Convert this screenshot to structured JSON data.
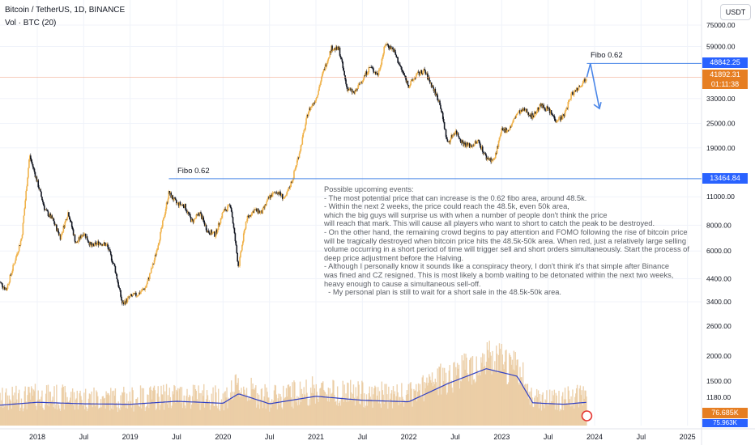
{
  "header": {
    "symbol": "Bitcoin / TetherUS, 1D, BINANCE",
    "volume_indicator": "Vol · BTC (20)",
    "currency": "USDT"
  },
  "price_tag": {
    "price": "41892.31",
    "countdown": "01:11:38"
  },
  "fibo_upper_tag": "48842.25",
  "fibo_lower_tag": "13464.84",
  "volume_tag": "76.685K",
  "volume_ma_tag": "75.963K",
  "fibo_upper_label": "Fibo 0.62",
  "fibo_lower_label": "Fibo 0.62",
  "notes": "Possible upcoming events:\n- The most potential price that can increase is the 0.62 fibo area, around 48.5k.\n- Within the next 2 weeks, the price could reach the 48.5k, even 50k area,\nwhich the big guys will surprise us with when a number of people don't think the price\nwill reach that mark. This will cause all players who want to short to catch the peak to be destroyed.\n- On the other hand, the remaining crowd begins to pay attention and FOMO following the rise of bitcoin price\nwill be tragically destroyed when bitcoin price hits the 48.5k-50k area. When red, just a relatively large selling\nvolume occurring in a short period of time will trigger sell and short orders simultaneously. Start the process of\ndeep price adjustment before the Halving.\n- Although I personally know it sounds like a conspiracy theory, I don't think it's that simple after Binance\nwas fined and CZ resigned. This is most likely a bomb waiting to be detonated within the next two weeks,\nheavy enough to cause a simultaneous sell-off.\n  - My personal plan is still to wait for a short sale in the 48.5k-50k area.",
  "colors": {
    "up_candle": "#f0b24a",
    "down_candle": "#131722",
    "volume_bar": "#e8c79a",
    "volume_ma": "#2f3fc4",
    "fibo_line": "#4a86e8",
    "price_line": "#f0a080",
    "arrow": "#4a86e8",
    "grid": "#f0f3fa"
  },
  "chart_data": {
    "type": "candlestick",
    "title": "Bitcoin / TetherUS, 1D, BINANCE",
    "y_scale": "log",
    "y_ticks": [
      3400,
      4400,
      6000,
      8000,
      11000,
      13464.84,
      19000,
      25000,
      33000,
      41892.31,
      48842.25,
      59000,
      75000
    ],
    "y_tick_labels": [
      "3400.00",
      "4400.00",
      "6000.00",
      "8000.00",
      "11000.00",
      "19000.00",
      "25000.00",
      "33000.00",
      "59000.00",
      "75000.00"
    ],
    "volume_ticks": [
      "1180.00",
      "1500.00",
      "2000.00",
      "2600.00"
    ],
    "x_tick_labels": [
      "2018",
      "Jul",
      "2019",
      "Jul",
      "2020",
      "Jul",
      "2021",
      "Jul",
      "2022",
      "Jul",
      "2023",
      "Jul",
      "2024",
      "Jul",
      "2025"
    ],
    "x_tick_dates": [
      "2018-01",
      "2018-07",
      "2019-01",
      "2019-07",
      "2020-01",
      "2020-07",
      "2021-01",
      "2021-07",
      "2022-01",
      "2022-07",
      "2023-01",
      "2023-07",
      "2024-01",
      "2024-07",
      "2025-01"
    ],
    "price_path": [
      [
        "2017-08",
        4300
      ],
      [
        "2017-09",
        3900
      ],
      [
        "2017-10",
        5200
      ],
      [
        "2017-11",
        7000
      ],
      [
        "2017-12",
        17500
      ],
      [
        "2018-01",
        13000
      ],
      [
        "2018-02",
        9500
      ],
      [
        "2018-03",
        8500
      ],
      [
        "2018-04",
        7000
      ],
      [
        "2018-05",
        9300
      ],
      [
        "2018-06",
        6500
      ],
      [
        "2018-07",
        7400
      ],
      [
        "2018-08",
        6300
      ],
      [
        "2018-09",
        6600
      ],
      [
        "2018-10",
        6400
      ],
      [
        "2018-11",
        5000
      ],
      [
        "2018-12",
        3300
      ],
      [
        "2019-01",
        3600
      ],
      [
        "2019-02",
        3700
      ],
      [
        "2019-03",
        4000
      ],
      [
        "2019-04",
        5200
      ],
      [
        "2019-05",
        7500
      ],
      [
        "2019-06",
        11500
      ],
      [
        "2019-07",
        10200
      ],
      [
        "2019-08",
        10000
      ],
      [
        "2019-09",
        8300
      ],
      [
        "2019-10",
        9200
      ],
      [
        "2019-11",
        7500
      ],
      [
        "2019-12",
        7200
      ],
      [
        "2020-01",
        9300
      ],
      [
        "2020-02",
        10000
      ],
      [
        "2020-03",
        5000
      ],
      [
        "2020-04",
        8500
      ],
      [
        "2020-05",
        9500
      ],
      [
        "2020-06",
        9200
      ],
      [
        "2020-07",
        11000
      ],
      [
        "2020-08",
        11700
      ],
      [
        "2020-09",
        10700
      ],
      [
        "2020-10",
        13500
      ],
      [
        "2020-11",
        19000
      ],
      [
        "2020-12",
        28500
      ],
      [
        "2021-01",
        33000
      ],
      [
        "2021-02",
        45000
      ],
      [
        "2021-03",
        58000
      ],
      [
        "2021-04",
        57000
      ],
      [
        "2021-05",
        37000
      ],
      [
        "2021-06",
        35000
      ],
      [
        "2021-07",
        41000
      ],
      [
        "2021-08",
        47000
      ],
      [
        "2021-09",
        43000
      ],
      [
        "2021-10",
        61000
      ],
      [
        "2021-11",
        57000
      ],
      [
        "2021-12",
        46000
      ],
      [
        "2022-01",
        38000
      ],
      [
        "2022-02",
        43000
      ],
      [
        "2022-03",
        45000
      ],
      [
        "2022-04",
        38000
      ],
      [
        "2022-05",
        31500
      ],
      [
        "2022-06",
        20000
      ],
      [
        "2022-07",
        23000
      ],
      [
        "2022-08",
        20000
      ],
      [
        "2022-09",
        19400
      ],
      [
        "2022-10",
        20500
      ],
      [
        "2022-11",
        17000
      ],
      [
        "2022-12",
        16500
      ],
      [
        "2023-01",
        23000
      ],
      [
        "2023-02",
        23500
      ],
      [
        "2023-03",
        28000
      ],
      [
        "2023-04",
        29000
      ],
      [
        "2023-05",
        27000
      ],
      [
        "2023-06",
        30500
      ],
      [
        "2023-07",
        29200
      ],
      [
        "2023-08",
        26000
      ],
      [
        "2023-09",
        27000
      ],
      [
        "2023-10",
        34500
      ],
      [
        "2023-11",
        37700
      ],
      [
        "2023-12",
        41892.31
      ]
    ],
    "volume_path": [
      [
        "2017-08",
        1020
      ],
      [
        "2018-01",
        1080
      ],
      [
        "2018-07",
        1050
      ],
      [
        "2019-01",
        1040
      ],
      [
        "2019-07",
        1100
      ],
      [
        "2020-01",
        1060
      ],
      [
        "2020-03",
        1250
      ],
      [
        "2020-07",
        1050
      ],
      [
        "2021-01",
        1200
      ],
      [
        "2021-07",
        1120
      ],
      [
        "2022-01",
        1090
      ],
      [
        "2022-06",
        1450
      ],
      [
        "2022-11",
        1750
      ],
      [
        "2023-03",
        1600
      ],
      [
        "2023-05",
        1070
      ],
      [
        "2023-09",
        1040
      ],
      [
        "2023-12",
        1080
      ]
    ],
    "annotations": [
      {
        "label": "Fibo 0.62",
        "value": 48842.25
      },
      {
        "label": "Fibo 0.62",
        "value": 13464.84
      }
    ],
    "projection": [
      [
        "2023-12",
        41892.31
      ],
      [
        "2023-12-15",
        48842.25
      ],
      [
        "2024-01-20",
        29500
      ]
    ]
  }
}
